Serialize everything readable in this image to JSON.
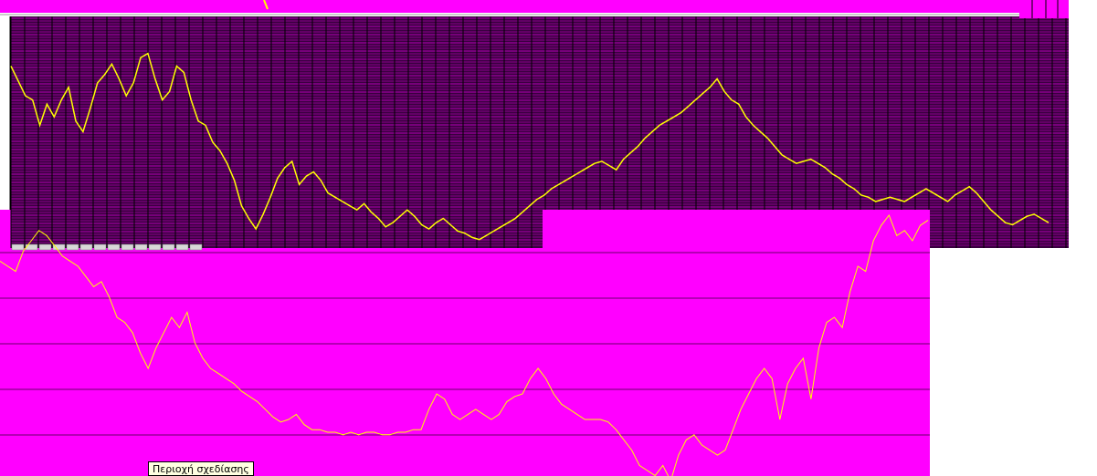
{
  "tooltip": {
    "text": "Περιοχή σχεδίασης"
  },
  "colors": {
    "magenta": "#ff00ff",
    "grid_purple": "#800080",
    "grid_dark": "#1a0033",
    "line_yellow": "#ffff00",
    "background": "#ffffff"
  },
  "chart_data": [
    {
      "type": "line",
      "title": "",
      "grid": true,
      "legend": "none",
      "series": [
        {
          "values": [
            0.86,
            0.79,
            0.72,
            0.7,
            0.58,
            0.68,
            0.62,
            0.7,
            0.76,
            0.6,
            0.55,
            0.66,
            0.78,
            0.82,
            0.87,
            0.8,
            0.72,
            0.78,
            0.9,
            0.92,
            0.8,
            0.7,
            0.74,
            0.86,
            0.83,
            0.7,
            0.6,
            0.58,
            0.5,
            0.46,
            0.4,
            0.32,
            0.2,
            0.14,
            0.09,
            0.16,
            0.24,
            0.33,
            0.38,
            0.41,
            0.3,
            0.34,
            0.36,
            0.32,
            0.26,
            0.24,
            0.22,
            0.2,
            0.18,
            0.21,
            0.17,
            0.14,
            0.1,
            0.12,
            0.15,
            0.18,
            0.15,
            0.11,
            0.09,
            0.12,
            0.14,
            0.11,
            0.08,
            0.07,
            0.05,
            0.04,
            0.06,
            0.08,
            0.1,
            0.12,
            0.14,
            0.17,
            0.2,
            0.23,
            0.25,
            0.28,
            0.3,
            0.32,
            0.34,
            0.36,
            0.38,
            0.4,
            0.41,
            0.39,
            0.37,
            0.42,
            0.45,
            0.48,
            0.52,
            0.55,
            0.58,
            0.6,
            0.62,
            0.64,
            0.67,
            0.7,
            0.73,
            0.76,
            0.8,
            0.74,
            0.7,
            0.68,
            0.62,
            0.58,
            0.55,
            0.52,
            0.48,
            0.44,
            0.42,
            0.4,
            0.41,
            0.42,
            0.4,
            0.38,
            0.35,
            0.33,
            0.3,
            0.28,
            0.25,
            0.24,
            0.22,
            0.23,
            0.24,
            0.23,
            0.22,
            0.24,
            0.26,
            0.28,
            0.26,
            0.24,
            0.22,
            0.25,
            0.27,
            0.29,
            0.26,
            0.22,
            0.18,
            0.15,
            0.12,
            0.11,
            0.13,
            0.15,
            0.16,
            0.14,
            0.12
          ]
        }
      ]
    },
    {
      "type": "line",
      "title": "",
      "grid": true,
      "legend": "none",
      "series": [
        {
          "values": [
            0.82,
            0.8,
            0.78,
            0.86,
            0.9,
            0.94,
            0.92,
            0.88,
            0.84,
            0.82,
            0.8,
            0.76,
            0.72,
            0.74,
            0.68,
            0.6,
            0.58,
            0.54,
            0.46,
            0.4,
            0.48,
            0.54,
            0.6,
            0.56,
            0.62,
            0.5,
            0.44,
            0.4,
            0.38,
            0.36,
            0.34,
            0.31,
            0.29,
            0.27,
            0.24,
            0.21,
            0.19,
            0.2,
            0.22,
            0.18,
            0.16,
            0.16,
            0.15,
            0.15,
            0.14,
            0.15,
            0.14,
            0.15,
            0.15,
            0.14,
            0.14,
            0.15,
            0.15,
            0.16,
            0.16,
            0.24,
            0.3,
            0.28,
            0.22,
            0.2,
            0.22,
            0.24,
            0.22,
            0.2,
            0.22,
            0.27,
            0.29,
            0.3,
            0.36,
            0.4,
            0.36,
            0.3,
            0.26,
            0.24,
            0.22,
            0.2,
            0.2,
            0.2,
            0.19,
            0.16,
            0.12,
            0.08,
            0.02,
            0.0,
            -0.02,
            0.02,
            -0.04,
            0.06,
            0.12,
            0.14,
            0.1,
            0.08,
            0.06,
            0.08,
            0.16,
            0.24,
            0.3,
            0.36,
            0.4,
            0.36,
            0.2,
            0.34,
            0.4,
            0.44,
            0.28,
            0.48,
            0.58,
            0.6,
            0.56,
            0.7,
            0.8,
            0.78,
            0.9,
            0.96,
            1.0,
            0.92,
            0.94,
            0.9,
            0.96,
            0.98
          ]
        }
      ]
    }
  ]
}
